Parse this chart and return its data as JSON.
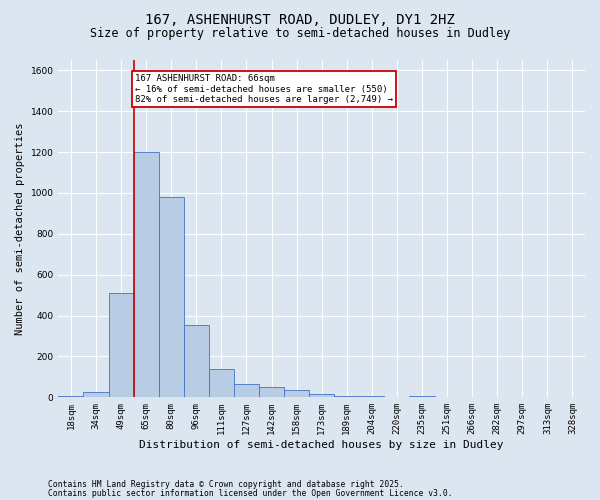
{
  "title": "167, ASHENHURST ROAD, DUDLEY, DY1 2HZ",
  "subtitle": "Size of property relative to semi-detached houses in Dudley",
  "xlabel": "Distribution of semi-detached houses by size in Dudley",
  "ylabel": "Number of semi-detached properties",
  "footnote1": "Contains HM Land Registry data © Crown copyright and database right 2025.",
  "footnote2": "Contains public sector information licensed under the Open Government Licence v3.0.",
  "categories": [
    "18sqm",
    "34sqm",
    "49sqm",
    "65sqm",
    "80sqm",
    "96sqm",
    "111sqm",
    "127sqm",
    "142sqm",
    "158sqm",
    "173sqm",
    "189sqm",
    "204sqm",
    "220sqm",
    "235sqm",
    "251sqm",
    "266sqm",
    "282sqm",
    "297sqm",
    "313sqm",
    "328sqm"
  ],
  "values": [
    5,
    28,
    510,
    1200,
    980,
    355,
    140,
    65,
    50,
    38,
    18,
    8,
    8,
    2,
    5,
    2,
    1,
    1,
    1,
    0,
    0
  ],
  "bar_color": "#b8cce4",
  "bar_edge_color": "#4472c4",
  "property_line_index": 3,
  "annotation_title": "167 ASHENHURST ROAD: 66sqm",
  "annotation_line1": "← 16% of semi-detached houses are smaller (550)",
  "annotation_line2": "82% of semi-detached houses are larger (2,749) →",
  "annotation_box_color": "#ffffff",
  "annotation_border_color": "#cc0000",
  "vline_color": "#cc0000",
  "ylim": [
    0,
    1650
  ],
  "yticks": [
    0,
    200,
    400,
    600,
    800,
    1000,
    1200,
    1400,
    1600
  ],
  "background_color": "#dce6f1",
  "plot_bg_color": "#dce6f1",
  "grid_color": "#ffffff",
  "title_fontsize": 10,
  "subtitle_fontsize": 8.5,
  "ylabel_fontsize": 7.5,
  "xlabel_fontsize": 8,
  "tick_fontsize": 6.5,
  "annotation_fontsize": 6.5,
  "footnote_fontsize": 5.8
}
